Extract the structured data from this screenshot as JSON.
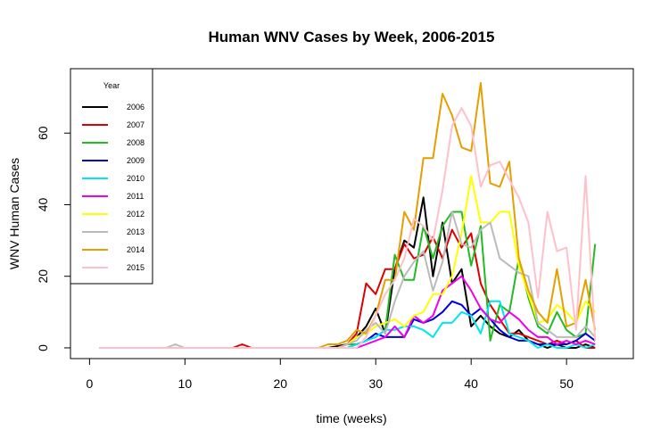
{
  "chart_data": {
    "type": "line",
    "title": "Human WNV Cases by Week, 2006-2015",
    "xlabel": "time (weeks)",
    "ylabel": "WNV Human Cases",
    "xlim": [
      -2,
      57
    ],
    "ylim": [
      -3,
      78
    ],
    "x_ticks": [
      0,
      10,
      20,
      30,
      40,
      50
    ],
    "y_ticks": [
      0,
      20,
      40,
      60
    ],
    "legend": {
      "title": "Year",
      "position": "top-left"
    },
    "series": [
      {
        "name": "2006",
        "color": "#000000",
        "points": [
          [
            1,
            0
          ],
          [
            25,
            0
          ],
          [
            27,
            1
          ],
          [
            28,
            3
          ],
          [
            29,
            6
          ],
          [
            30,
            11
          ],
          [
            31,
            4
          ],
          [
            32,
            22
          ],
          [
            33,
            30
          ],
          [
            34,
            28
          ],
          [
            35,
            42
          ],
          [
            36,
            20
          ],
          [
            37,
            35
          ],
          [
            38,
            18
          ],
          [
            39,
            22
          ],
          [
            40,
            6
          ],
          [
            41,
            9
          ],
          [
            42,
            6
          ],
          [
            43,
            4
          ],
          [
            44,
            3
          ],
          [
            45,
            5
          ],
          [
            46,
            2
          ],
          [
            47,
            1
          ],
          [
            48,
            0
          ],
          [
            49,
            1
          ],
          [
            50,
            0
          ],
          [
            51,
            0
          ],
          [
            52,
            1
          ],
          [
            53,
            0
          ]
        ]
      },
      {
        "name": "2007",
        "color": "#dd0000",
        "points": [
          [
            1,
            0
          ],
          [
            15,
            0
          ],
          [
            16,
            1
          ],
          [
            17,
            0
          ],
          [
            26,
            0
          ],
          [
            27,
            1
          ],
          [
            28,
            4
          ],
          [
            29,
            18
          ],
          [
            30,
            15
          ],
          [
            31,
            22
          ],
          [
            32,
            22
          ],
          [
            33,
            29
          ],
          [
            34,
            25
          ],
          [
            35,
            26
          ],
          [
            36,
            31
          ],
          [
            37,
            25
          ],
          [
            38,
            33
          ],
          [
            39,
            28
          ],
          [
            40,
            32
          ],
          [
            41,
            18
          ],
          [
            42,
            12
          ],
          [
            43,
            8
          ],
          [
            44,
            4
          ],
          [
            45,
            4
          ],
          [
            46,
            3
          ],
          [
            47,
            2
          ],
          [
            48,
            1
          ],
          [
            49,
            2
          ],
          [
            50,
            1
          ],
          [
            51,
            2
          ],
          [
            52,
            0
          ],
          [
            53,
            0
          ]
        ]
      },
      {
        "name": "2008",
        "color": "#22bb22",
        "points": [
          [
            1,
            0
          ],
          [
            26,
            0
          ],
          [
            27,
            1
          ],
          [
            28,
            1
          ],
          [
            29,
            2
          ],
          [
            30,
            3
          ],
          [
            31,
            5
          ],
          [
            32,
            26
          ],
          [
            33,
            19
          ],
          [
            34,
            19
          ],
          [
            35,
            34
          ],
          [
            36,
            25
          ],
          [
            37,
            34
          ],
          [
            38,
            38
          ],
          [
            39,
            38
          ],
          [
            40,
            23
          ],
          [
            41,
            34
          ],
          [
            42,
            2
          ],
          [
            43,
            12
          ],
          [
            44,
            10
          ],
          [
            45,
            25
          ],
          [
            46,
            14
          ],
          [
            47,
            6
          ],
          [
            48,
            4
          ],
          [
            49,
            10
          ],
          [
            50,
            5
          ],
          [
            51,
            3
          ],
          [
            52,
            4
          ],
          [
            53,
            29
          ]
        ]
      },
      {
        "name": "2009",
        "color": "#0000dd",
        "points": [
          [
            1,
            0
          ],
          [
            27,
            0
          ],
          [
            28,
            1
          ],
          [
            29,
            2
          ],
          [
            30,
            4
          ],
          [
            31,
            3
          ],
          [
            32,
            3
          ],
          [
            33,
            3
          ],
          [
            34,
            8
          ],
          [
            35,
            7
          ],
          [
            36,
            8
          ],
          [
            37,
            10
          ],
          [
            38,
            13
          ],
          [
            39,
            12
          ],
          [
            40,
            9
          ],
          [
            41,
            11
          ],
          [
            42,
            8
          ],
          [
            43,
            5
          ],
          [
            44,
            3
          ],
          [
            45,
            2
          ],
          [
            46,
            2
          ],
          [
            47,
            1
          ],
          [
            48,
            1
          ],
          [
            49,
            1
          ],
          [
            50,
            1
          ],
          [
            51,
            2
          ],
          [
            52,
            4
          ],
          [
            53,
            2
          ]
        ]
      },
      {
        "name": "2010",
        "color": "#00e5ee",
        "points": [
          [
            1,
            0
          ],
          [
            27,
            0
          ],
          [
            28,
            1
          ],
          [
            29,
            2
          ],
          [
            30,
            3
          ],
          [
            31,
            5
          ],
          [
            32,
            5
          ],
          [
            33,
            6
          ],
          [
            34,
            6
          ],
          [
            35,
            5
          ],
          [
            36,
            3
          ],
          [
            37,
            7
          ],
          [
            38,
            7
          ],
          [
            39,
            10
          ],
          [
            40,
            9
          ],
          [
            41,
            4
          ],
          [
            42,
            13
          ],
          [
            43,
            13
          ],
          [
            44,
            4
          ],
          [
            45,
            3
          ],
          [
            46,
            2
          ],
          [
            47,
            0
          ],
          [
            48,
            1
          ],
          [
            49,
            0
          ],
          [
            50,
            0
          ],
          [
            51,
            1
          ],
          [
            52,
            0
          ],
          [
            53,
            1
          ]
        ]
      },
      {
        "name": "2011",
        "color": "#ee00ee",
        "points": [
          [
            1,
            0
          ],
          [
            28,
            0
          ],
          [
            29,
            1
          ],
          [
            30,
            2
          ],
          [
            31,
            3
          ],
          [
            32,
            6
          ],
          [
            33,
            3
          ],
          [
            34,
            9
          ],
          [
            35,
            7
          ],
          [
            36,
            9
          ],
          [
            37,
            16
          ],
          [
            38,
            18
          ],
          [
            39,
            20
          ],
          [
            40,
            16
          ],
          [
            41,
            11
          ],
          [
            42,
            8
          ],
          [
            43,
            7
          ],
          [
            44,
            10
          ],
          [
            45,
            8
          ],
          [
            46,
            5
          ],
          [
            47,
            3
          ],
          [
            48,
            3
          ],
          [
            49,
            1
          ],
          [
            50,
            2
          ],
          [
            51,
            1
          ],
          [
            52,
            2
          ],
          [
            53,
            1
          ]
        ]
      },
      {
        "name": "2012",
        "color": "#ffff00",
        "points": [
          [
            1,
            0
          ],
          [
            26,
            0
          ],
          [
            27,
            1
          ],
          [
            28,
            3
          ],
          [
            29,
            4
          ],
          [
            30,
            6
          ],
          [
            31,
            7
          ],
          [
            32,
            8
          ],
          [
            33,
            6
          ],
          [
            34,
            9
          ],
          [
            35,
            10
          ],
          [
            36,
            15
          ],
          [
            37,
            15
          ],
          [
            38,
            20
          ],
          [
            39,
            32
          ],
          [
            40,
            48
          ],
          [
            41,
            35
          ],
          [
            42,
            35
          ],
          [
            43,
            38
          ],
          [
            44,
            38
          ],
          [
            45,
            23
          ],
          [
            46,
            15
          ],
          [
            47,
            7
          ],
          [
            48,
            8
          ],
          [
            49,
            12
          ],
          [
            50,
            10
          ],
          [
            51,
            7
          ],
          [
            52,
            13
          ],
          [
            53,
            10
          ]
        ]
      },
      {
        "name": "2013",
        "color": "#bbbbbb",
        "points": [
          [
            1,
            0
          ],
          [
            8,
            0
          ],
          [
            9,
            1
          ],
          [
            10,
            0
          ],
          [
            26,
            0
          ],
          [
            27,
            1
          ],
          [
            28,
            2
          ],
          [
            29,
            5
          ],
          [
            30,
            7
          ],
          [
            31,
            4
          ],
          [
            32,
            13
          ],
          [
            33,
            20
          ],
          [
            34,
            24
          ],
          [
            35,
            27
          ],
          [
            36,
            16
          ],
          [
            37,
            24
          ],
          [
            38,
            38
          ],
          [
            39,
            29
          ],
          [
            40,
            28
          ],
          [
            41,
            33
          ],
          [
            42,
            35
          ],
          [
            43,
            25
          ],
          [
            44,
            23
          ],
          [
            45,
            21
          ],
          [
            46,
            20
          ],
          [
            47,
            7
          ],
          [
            48,
            5
          ],
          [
            49,
            3
          ],
          [
            50,
            3
          ],
          [
            51,
            3
          ],
          [
            52,
            6
          ],
          [
            53,
            3
          ]
        ]
      },
      {
        "name": "2014",
        "color": "#e69f00",
        "points": [
          [
            1,
            0
          ],
          [
            24,
            0
          ],
          [
            25,
            1
          ],
          [
            26,
            1
          ],
          [
            27,
            2
          ],
          [
            28,
            5
          ],
          [
            29,
            4
          ],
          [
            30,
            9
          ],
          [
            31,
            19
          ],
          [
            32,
            19
          ],
          [
            33,
            38
          ],
          [
            34,
            33
          ],
          [
            35,
            53
          ],
          [
            36,
            53
          ],
          [
            37,
            71
          ],
          [
            38,
            65
          ],
          [
            39,
            56
          ],
          [
            40,
            55
          ],
          [
            41,
            74
          ],
          [
            42,
            46
          ],
          [
            43,
            45
          ],
          [
            44,
            52
          ],
          [
            45,
            25
          ],
          [
            46,
            16
          ],
          [
            47,
            10
          ],
          [
            48,
            7
          ],
          [
            49,
            22
          ],
          [
            50,
            6
          ],
          [
            51,
            7
          ],
          [
            52,
            19
          ],
          [
            53,
            5
          ]
        ]
      },
      {
        "name": "2015",
        "color": "#ffc0cb",
        "points": [
          [
            1,
            0
          ],
          [
            28,
            0
          ],
          [
            29,
            3
          ],
          [
            30,
            9
          ],
          [
            31,
            15
          ],
          [
            32,
            19
          ],
          [
            33,
            25
          ],
          [
            34,
            36
          ],
          [
            35,
            34
          ],
          [
            36,
            30
          ],
          [
            37,
            44
          ],
          [
            38,
            62
          ],
          [
            39,
            67
          ],
          [
            40,
            62
          ],
          [
            41,
            45
          ],
          [
            42,
            51
          ],
          [
            43,
            52
          ],
          [
            44,
            47
          ],
          [
            45,
            42
          ],
          [
            46,
            35
          ],
          [
            47,
            14
          ],
          [
            48,
            38
          ],
          [
            49,
            27
          ],
          [
            50,
            28
          ],
          [
            51,
            5
          ],
          [
            52,
            48
          ],
          [
            53,
            2
          ]
        ]
      }
    ]
  }
}
